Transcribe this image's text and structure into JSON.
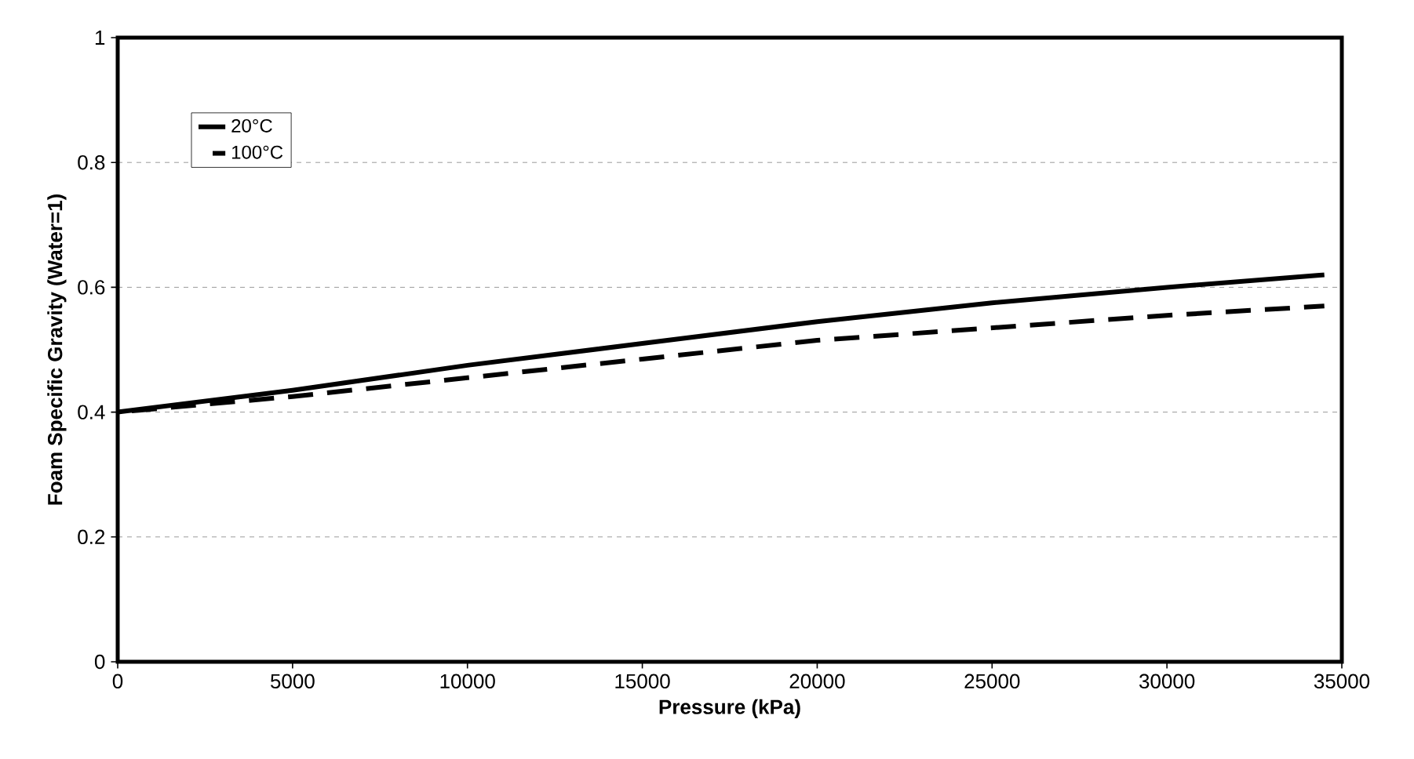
{
  "chart_data": {
    "type": "line",
    "xlabel": "Pressure (kPa)",
    "ylabel": "Foam Specific Gravity (Water=1)",
    "x": [
      0,
      5000,
      10000,
      15000,
      20000,
      25000,
      30000,
      34500
    ],
    "series": [
      {
        "name": "20°C",
        "color": "#000000",
        "line_style": "solid",
        "values": [
          0.4,
          0.435,
          0.475,
          0.51,
          0.545,
          0.575,
          0.6,
          0.62
        ]
      },
      {
        "name": "100°C",
        "color": "#000000",
        "line_style": "dashed",
        "values": [
          0.4,
          0.425,
          0.455,
          0.485,
          0.515,
          0.535,
          0.555,
          0.57
        ]
      }
    ],
    "xlim": [
      0,
      35000
    ],
    "ylim": [
      0,
      1
    ],
    "xticks": [
      0,
      5000,
      10000,
      15000,
      20000,
      25000,
      30000,
      35000
    ],
    "yticks": [
      0,
      0.2,
      0.4,
      0.6,
      0.8,
      1
    ],
    "grid": "y",
    "legend": "top left",
    "marker": "none"
  }
}
